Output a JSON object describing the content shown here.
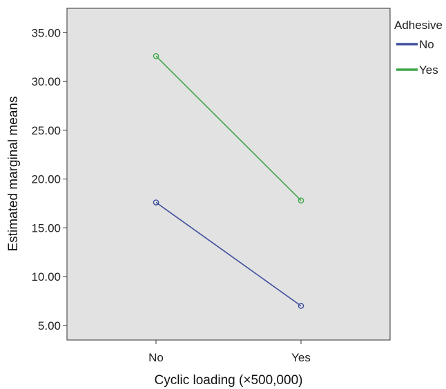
{
  "chart_data": {
    "type": "line",
    "title": "",
    "xlabel": "Cyclic loading (×500,000)",
    "ylabel": "Estimated marginal means",
    "categories": [
      "No",
      "Yes"
    ],
    "ylim": [
      3.5,
      37.5
    ],
    "yticks": [
      "5.00",
      "10.00",
      "15.00",
      "20.00",
      "25.00",
      "30.00",
      "35.00"
    ],
    "grid": false,
    "background": "#e2e2e2",
    "legend": {
      "title": "Adhesive",
      "placement": "top-right outside plot"
    },
    "series": [
      {
        "name": "No",
        "values": [
          17.6,
          7.0
        ],
        "color": "#3d4e9c"
      },
      {
        "name": "Yes",
        "values": [
          32.6,
          17.8
        ],
        "color": "#3fa648"
      }
    ]
  }
}
